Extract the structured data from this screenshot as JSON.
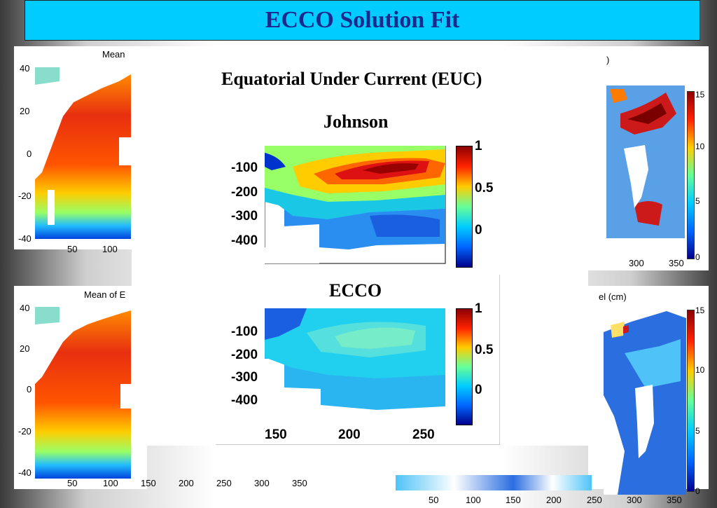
{
  "slide": {
    "title": "ECCO Solution Fit"
  },
  "left_top": {
    "title_fragment": "Mean",
    "y_ticks": [
      "40",
      "20",
      "0",
      "-20",
      "-40"
    ],
    "x_ticks": [
      "50",
      "100"
    ]
  },
  "left_bottom": {
    "title_fragment": "Mean of E",
    "y_ticks": [
      "40",
      "20",
      "0",
      "-20",
      "-40"
    ],
    "x_ticks": [
      "50",
      "100",
      "150",
      "200",
      "250",
      "300",
      "350"
    ]
  },
  "right_top": {
    "title_fragment": ")",
    "colorbar_ticks": [
      "15",
      "10",
      "5",
      "0"
    ],
    "x_ticks": [
      "300",
      "350"
    ]
  },
  "right_bottom": {
    "title_fragment": "el (cm)",
    "colorbar_ticks": [
      "15",
      "10",
      "5",
      "0"
    ],
    "x_ticks": [
      "50",
      "100",
      "150",
      "200",
      "250",
      "300",
      "350"
    ]
  },
  "euc": {
    "heading": "Equatorial Under Current (EUC)",
    "johnson_label": "Johnson",
    "ecco_label": "ECCO",
    "depth_ticks": [
      "-100",
      "-200",
      "-300",
      "-400"
    ],
    "lon_ticks": [
      "150",
      "200",
      "250"
    ],
    "colorbar_ticks": [
      "1",
      "0.5",
      "0"
    ]
  },
  "colors": {
    "title_bar": "#00ccff",
    "title_text": "#1a2a8c"
  }
}
